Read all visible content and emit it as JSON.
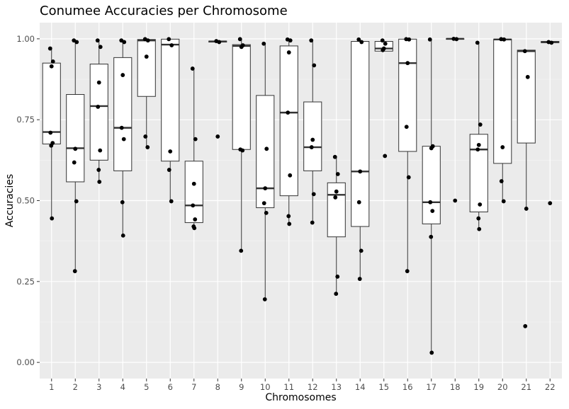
{
  "chart_data": {
    "type": "boxplot",
    "title": "Conumee Accuracies per Chromosome",
    "xlabel": "Chromosomes",
    "ylabel": "Accuracies",
    "ylim": [
      -0.05,
      1.05
    ],
    "yticks": [
      0,
      0.25,
      0.5,
      0.75,
      1
    ],
    "ytick_labels": [
      "0.00",
      "0.25",
      "0.50",
      "0.75",
      "1.00"
    ],
    "grid": true,
    "legend": "none",
    "categories": [
      "1",
      "2",
      "3",
      "4",
      "5",
      "6",
      "7",
      "8",
      "9",
      "10",
      "11",
      "12",
      "13",
      "14",
      "15",
      "16",
      "17",
      "18",
      "19",
      "20",
      "21",
      "22"
    ],
    "boxes": [
      {
        "q1": 0.675,
        "median": 0.712,
        "q3": 0.925,
        "lo": 0.445,
        "hi": 0.975
      },
      {
        "q1": 0.558,
        "median": 0.662,
        "q3": 0.828,
        "lo": 0.282,
        "hi": 0.998
      },
      {
        "q1": 0.625,
        "median": 0.792,
        "q3": 0.922,
        "lo": 0.558,
        "hi": 0.998
      },
      {
        "q1": 0.592,
        "median": 0.725,
        "q3": 0.942,
        "lo": 0.392,
        "hi": 0.998
      },
      {
        "q1": 0.822,
        "median": 0.995,
        "q3": 0.998,
        "lo": 0.665,
        "hi": 0.999
      },
      {
        "q1": 0.622,
        "median": 0.982,
        "q3": 0.999,
        "lo": 0.498,
        "hi": 0.999
      },
      {
        "q1": 0.432,
        "median": 0.485,
        "q3": 0.622,
        "lo": 0.415,
        "hi": 0.908
      },
      {
        "q1": 0.99,
        "median": 0.992,
        "q3": 0.993,
        "lo": 0.99,
        "hi": 0.993
      },
      {
        "q1": 0.658,
        "median": 0.978,
        "q3": 0.982,
        "lo": 0.345,
        "hi": 0.999
      },
      {
        "q1": 0.478,
        "median": 0.538,
        "q3": 0.825,
        "lo": 0.195,
        "hi": 0.985
      },
      {
        "q1": 0.515,
        "median": 0.772,
        "q3": 0.978,
        "lo": 0.428,
        "hi": 0.998
      },
      {
        "q1": 0.592,
        "median": 0.665,
        "q3": 0.805,
        "lo": 0.432,
        "hi": 0.998
      },
      {
        "q1": 0.388,
        "median": 0.518,
        "q3": 0.555,
        "lo": 0.212,
        "hi": 0.635
      },
      {
        "q1": 0.42,
        "median": 0.59,
        "q3": 0.992,
        "lo": 0.258,
        "hi": 0.998
      },
      {
        "q1": 0.962,
        "median": 0.97,
        "q3": 0.992,
        "lo": 0.962,
        "hi": 0.995
      },
      {
        "q1": 0.652,
        "median": 0.925,
        "q3": 0.999,
        "lo": 0.282,
        "hi": 0.999
      },
      {
        "q1": 0.428,
        "median": 0.495,
        "q3": 0.668,
        "lo": 0.03,
        "hi": 0.999
      },
      {
        "q1": 0.999,
        "median": 1.0,
        "q3": 1.0,
        "lo": 0.999,
        "hi": 1.0
      },
      {
        "q1": 0.465,
        "median": 0.658,
        "q3": 0.705,
        "lo": 0.412,
        "hi": 0.988
      },
      {
        "q1": 0.615,
        "median": 0.998,
        "q3": 0.999,
        "lo": 0.498,
        "hi": 0.999
      },
      {
        "q1": 0.678,
        "median": 0.962,
        "q3": 0.965,
        "lo": 0.475,
        "hi": 0.965
      },
      {
        "q1": 0.988,
        "median": 0.99,
        "q3": 0.992,
        "lo": 0.988,
        "hi": 0.992
      }
    ],
    "points": [
      [
        0.97,
        0.93,
        0.915,
        0.71,
        0.678,
        0.67,
        0.445
      ],
      [
        0.995,
        0.99,
        0.66,
        0.618,
        0.498,
        0.282
      ],
      [
        0.995,
        0.975,
        0.865,
        0.79,
        0.655,
        0.595,
        0.558
      ],
      [
        0.995,
        0.99,
        0.888,
        0.725,
        0.69,
        0.495,
        0.392
      ],
      [
        0.999,
        0.995,
        0.945,
        0.698,
        0.665
      ],
      [
        0.999,
        0.98,
        0.652,
        0.595,
        0.498
      ],
      [
        0.908,
        0.69,
        0.552,
        0.485,
        0.442,
        0.42,
        0.415
      ],
      [
        0.993,
        0.99,
        0.698
      ],
      [
        0.999,
        0.98,
        0.975,
        0.658,
        0.655,
        0.345
      ],
      [
        0.985,
        0.66,
        0.538,
        0.492,
        0.462,
        0.195
      ],
      [
        0.998,
        0.995,
        0.958,
        0.772,
        0.578,
        0.452,
        0.428
      ],
      [
        0.995,
        0.918,
        0.688,
        0.665,
        0.52,
        0.432
      ],
      [
        0.635,
        0.582,
        0.528,
        0.51,
        0.265,
        0.212
      ],
      [
        0.998,
        0.99,
        0.59,
        0.495,
        0.345,
        0.258
      ],
      [
        0.995,
        0.985,
        0.97,
        0.965,
        0.638
      ],
      [
        0.999,
        0.998,
        0.925,
        0.728,
        0.572,
        0.282
      ],
      [
        0.998,
        0.668,
        0.662,
        0.495,
        0.468,
        0.388,
        0.03
      ],
      [
        1.0,
        0.999,
        0.5
      ],
      [
        0.988,
        0.735,
        0.672,
        0.658,
        0.488,
        0.445,
        0.412
      ],
      [
        0.999,
        0.998,
        0.665,
        0.56,
        0.498
      ],
      [
        0.962,
        0.882,
        0.475,
        0.112
      ],
      [
        0.99,
        0.988,
        0.492
      ]
    ]
  }
}
